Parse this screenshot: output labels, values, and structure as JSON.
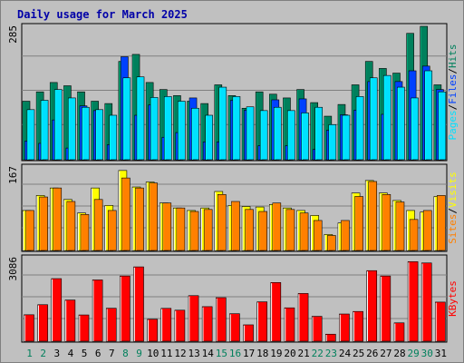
{
  "title": "Daily usage for March 2025",
  "colors": {
    "background": "#c0c0c0",
    "border": "#7f7f7f",
    "hits": "#00805c",
    "files": "#0040ff",
    "pages": "#00e0ff",
    "visits": "#ffff00",
    "sites": "#ff8000",
    "kbytes": "#ff0000",
    "weekend_day": "#00805c",
    "week_day": "#000000",
    "title": "#0000a8"
  },
  "chart_data": [
    {
      "type": "bar",
      "name": "hits-files-pages",
      "categories": [
        "1",
        "2",
        "3",
        "4",
        "5",
        "6",
        "7",
        "8",
        "9",
        "10",
        "11",
        "12",
        "13",
        "14",
        "15",
        "16",
        "17",
        "18",
        "19",
        "20",
        "21",
        "22",
        "23",
        "24",
        "25",
        "26",
        "27",
        "28",
        "29",
        "30",
        "31"
      ],
      "ymax_label": "285",
      "ylim": [
        0,
        285
      ],
      "series": [
        {
          "name": "Hits",
          "values": [
            125,
            145,
            165,
            158,
            145,
            125,
            120,
            210,
            225,
            165,
            150,
            137,
            125,
            120,
            160,
            137,
            110,
            145,
            140,
            132,
            150,
            122,
            93,
            118,
            160,
            210,
            195,
            185,
            270,
            285,
            160
          ]
        },
        {
          "name": "Files",
          "values": [
            40,
            35,
            85,
            25,
            115,
            105,
            32,
            220,
            95,
            117,
            48,
            58,
            132,
            38,
            38,
            127,
            106,
            30,
            128,
            30,
            130,
            22,
            63,
            96,
            106,
            167,
            97,
            167,
            190,
            200,
            150
          ]
        },
        {
          "name": "Pages",
          "values": [
            107,
            127,
            150,
            132,
            112,
            107,
            95,
            175,
            177,
            133,
            135,
            125,
            110,
            95,
            155,
            135,
            113,
            105,
            112,
            105,
            100,
            112,
            75,
            95,
            135,
            175,
            180,
            155,
            132,
            190,
            145
          ]
        }
      ],
      "legend": [
        "Pages",
        "Files",
        "Hits"
      ]
    },
    {
      "type": "bar",
      "name": "visits-sites",
      "categories": [
        "1",
        "2",
        "3",
        "4",
        "5",
        "6",
        "7",
        "8",
        "9",
        "10",
        "11",
        "12",
        "13",
        "14",
        "15",
        "16",
        "17",
        "18",
        "19",
        "20",
        "21",
        "22",
        "23",
        "24",
        "25",
        "26",
        "27",
        "28",
        "29",
        "30",
        "31"
      ],
      "ymax_label": "167",
      "ylim": [
        0,
        167
      ],
      "series": [
        {
          "name": "Visits",
          "values": [
            80,
            110,
            125,
            102,
            75,
            125,
            90,
            160,
            127,
            137,
            95,
            85,
            80,
            85,
            118,
            90,
            88,
            87,
            92,
            85,
            80,
            70,
            32,
            55,
            115,
            140,
            115,
            100,
            80,
            77,
            108
          ]
        },
        {
          "name": "Sites",
          "values": [
            80,
            107,
            125,
            98,
            72,
            102,
            80,
            145,
            125,
            135,
            95,
            85,
            78,
            82,
            112,
            98,
            82,
            78,
            95,
            82,
            75,
            60,
            30,
            60,
            108,
            138,
            112,
            97,
            62,
            80,
            110
          ]
        }
      ],
      "legend": [
        "Sites",
        "Visits"
      ]
    },
    {
      "type": "bar",
      "name": "kbytes",
      "categories": [
        "1",
        "2",
        "3",
        "4",
        "5",
        "6",
        "7",
        "8",
        "9",
        "10",
        "11",
        "12",
        "13",
        "14",
        "15",
        "16",
        "17",
        "18",
        "19",
        "20",
        "21",
        "22",
        "23",
        "24",
        "25",
        "26",
        "27",
        "28",
        "29",
        "30",
        "31"
      ],
      "ymax_label": "3086",
      "ylim": [
        0,
        3086
      ],
      "series": [
        {
          "name": "KBytes",
          "values": [
            978,
            1350,
            2314,
            1523,
            971,
            2266,
            1219,
            2411,
            2748,
            811,
            1215,
            1147,
            1685,
            1278,
            1610,
            1017,
            605,
            1456,
            2170,
            1234,
            1765,
            920,
            260,
            1006,
            1100,
            2609,
            2411,
            679,
            2940,
            2893,
            1446
          ]
        }
      ],
      "legend": [
        "KBytes"
      ]
    }
  ],
  "days": [
    {
      "label": "1",
      "weekend": true
    },
    {
      "label": "2",
      "weekend": true
    },
    {
      "label": "3",
      "weekend": false
    },
    {
      "label": "4",
      "weekend": false
    },
    {
      "label": "5",
      "weekend": false
    },
    {
      "label": "6",
      "weekend": false
    },
    {
      "label": "7",
      "weekend": false
    },
    {
      "label": "8",
      "weekend": true
    },
    {
      "label": "9",
      "weekend": true
    },
    {
      "label": "10",
      "weekend": false
    },
    {
      "label": "11",
      "weekend": false
    },
    {
      "label": "12",
      "weekend": false
    },
    {
      "label": "13",
      "weekend": false
    },
    {
      "label": "14",
      "weekend": false
    },
    {
      "label": "15",
      "weekend": true
    },
    {
      "label": "16",
      "weekend": true
    },
    {
      "label": "17",
      "weekend": false
    },
    {
      "label": "18",
      "weekend": false
    },
    {
      "label": "19",
      "weekend": false
    },
    {
      "label": "20",
      "weekend": false
    },
    {
      "label": "21",
      "weekend": false
    },
    {
      "label": "22",
      "weekend": true
    },
    {
      "label": "23",
      "weekend": true
    },
    {
      "label": "24",
      "weekend": false
    },
    {
      "label": "25",
      "weekend": false
    },
    {
      "label": "26",
      "weekend": false
    },
    {
      "label": "27",
      "weekend": false
    },
    {
      "label": "28",
      "weekend": false
    },
    {
      "label": "29",
      "weekend": true
    },
    {
      "label": "30",
      "weekend": true
    },
    {
      "label": "31",
      "weekend": false
    }
  ]
}
